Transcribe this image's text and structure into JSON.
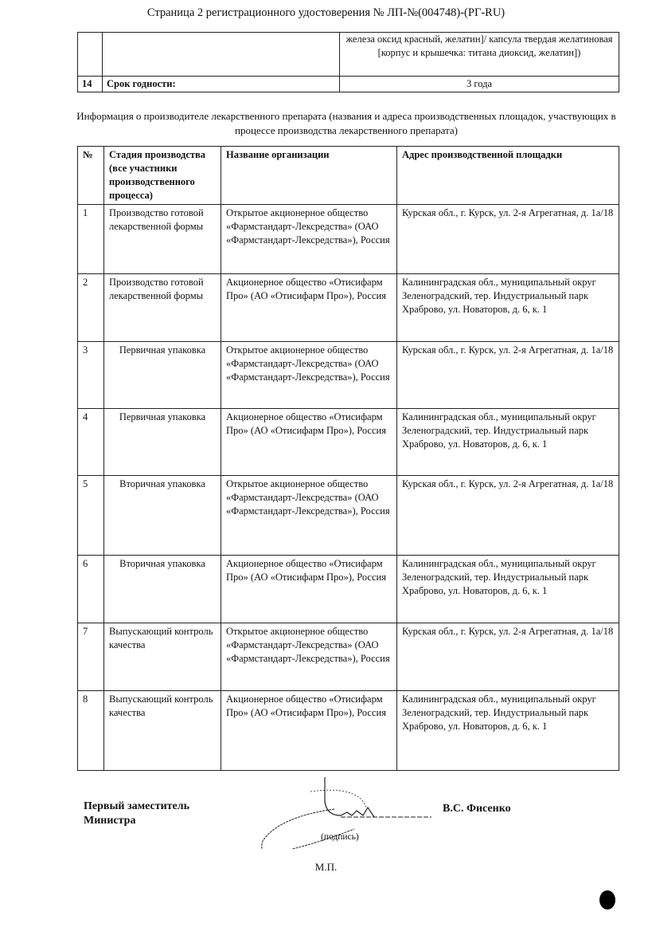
{
  "header": {
    "title": "Страница 2 регистрационного удостоверения № ЛП-№(004748)-(РГ-RU)"
  },
  "top_table": {
    "rows": [
      {
        "num": "",
        "label": "",
        "value": "железа оксид красный, желатин]/ капсула твердая желатиновая [корпус и крышечка: титана диоксид, желатин])"
      },
      {
        "num": "14",
        "label": "Срок годности:",
        "value": "3 года"
      }
    ]
  },
  "info_text": "Информация о производителе лекарственного препарата (названия и адреса производственных площадок, участвующих в процессе производства лекарственного препарата)",
  "manufacturers": {
    "headers": [
      "№",
      "Стадия производства (все участники производственного процесса)",
      "Название организации",
      "Адрес производственной площадки"
    ],
    "rows": [
      {
        "num": "1",
        "stage": "Производство готовой лекарственной формы",
        "org": "Открытое акционерное общество «Фармстандарт-Лексредства» (ОАО «Фармстандарт-Лексредства»), Россия",
        "address": "Курская обл., г. Курск, ул. 2-я Агрегатная, д. 1а/18"
      },
      {
        "num": "2",
        "stage": "Производство готовой лекарственной формы",
        "org": "Акционерное общество «Отисифарм Про» (АО «Отисифарм Про»), Россия",
        "address": "Калининградская обл., муниципальный округ Зеленоградский, тер. Индустриальный парк Храброво, ул. Новаторов, д. 6, к. 1"
      },
      {
        "num": "3",
        "stage": "Первичная упаковка",
        "org": "Открытое акционерное общество «Фармстандарт-Лексредства» (ОАО «Фармстандарт-Лексредства»), Россия",
        "address": "Курская обл., г. Курск, ул. 2-я Агрегатная, д. 1а/18"
      },
      {
        "num": "4",
        "stage": "Первичная упаковка",
        "org": "Акционерное общество «Отисифарм Про» (АО «Отисифарм Про»), Россия",
        "address": "Калининградская обл., муниципальный округ Зеленоградский, тер. Индустриальный парк Храброво, ул. Новаторов, д. 6, к. 1"
      },
      {
        "num": "5",
        "stage": "Вторичная упаковка",
        "org": "Открытое акционерное общество «Фармстандарт-Лексредства» (ОАО «Фармстандарт-Лексредства»), Россия",
        "address": "Курская обл., г. Курск, ул. 2-я Агрегатная, д. 1а/18"
      },
      {
        "num": "6",
        "stage": "Вторичная упаковка",
        "org": "Акционерное общество «Отисифарм Про» (АО «Отисифарм Про»), Россия",
        "address": "Калининградская обл., муниципальный округ Зеленоградский, тер. Индустриальный парк Храброво, ул. Новаторов, д. 6, к. 1"
      },
      {
        "num": "7",
        "stage": "Выпускающий контроль качества",
        "org": "Открытое акционерное общество «Фармстандарт-Лексредства» (ОАО «Фармстандарт-Лексредства»), Россия",
        "address": "Курская обл., г. Курск, ул. 2-я Агрегатная, д. 1а/18"
      },
      {
        "num": "8",
        "stage": "Выпускающий контроль качества",
        "org": "Акционерное общество «Отисифарм Про» (АО «Отисифарм Про»), Россия",
        "address": "Калининградская обл., муниципальный округ Зеленоградский, тер. Индустриальный парк Храброво, ул. Новаторов, д. 6, к. 1"
      }
    ]
  },
  "signature": {
    "position": "Первый заместитель Министра",
    "name": "В.С. Фисенко",
    "caption": "(подпись)",
    "stamp_place": "М.П."
  }
}
